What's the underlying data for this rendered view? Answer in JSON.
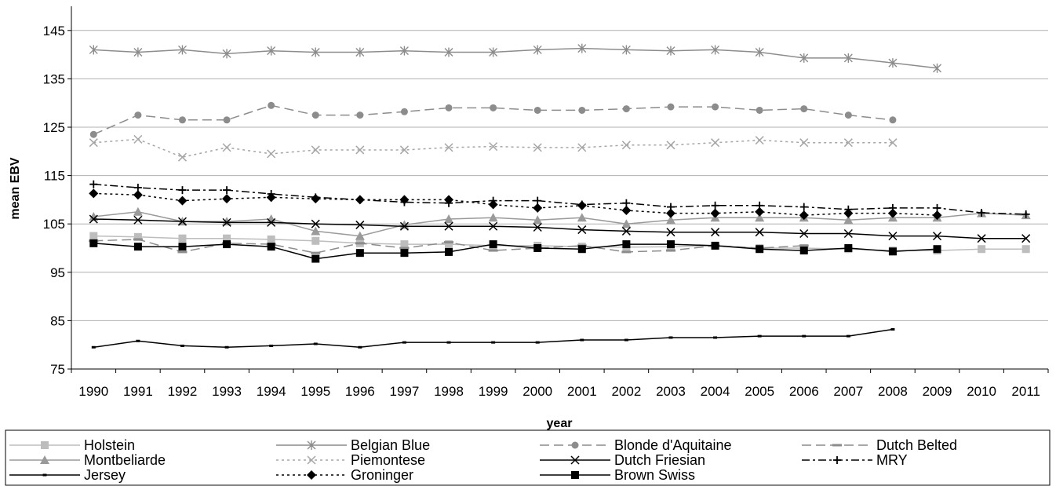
{
  "chart_data": {
    "type": "line",
    "title": "",
    "xlabel": "year",
    "ylabel": "mean EBV",
    "ylim": [
      75,
      150
    ],
    "yticks": [
      75,
      85,
      95,
      105,
      115,
      125,
      135,
      145
    ],
    "grid": "horizontal",
    "legend_position": "bottom",
    "x": [
      1990,
      1991,
      1992,
      1993,
      1994,
      1995,
      1996,
      1997,
      1998,
      1999,
      2000,
      2001,
      2002,
      2003,
      2004,
      2005,
      2006,
      2007,
      2008,
      2009,
      2010,
      2011
    ],
    "series": [
      {
        "name": "Holstein",
        "color": "#bdbdbd",
        "dash": "solid",
        "marker": "square",
        "values": [
          102.5,
          102.3,
          102.0,
          102.0,
          101.8,
          101.5,
          101.0,
          100.8,
          100.8,
          100.5,
          100.5,
          100.3,
          100.2,
          100.3,
          100.5,
          100.0,
          100.0,
          99.8,
          99.5,
          99.5,
          99.8,
          99.8
        ]
      },
      {
        "name": "Belgian Blue",
        "color": "#8c8c8c",
        "dash": "solid",
        "marker": "asterisk",
        "values": [
          141,
          140.5,
          141,
          140.2,
          140.8,
          140.5,
          140.5,
          140.8,
          140.5,
          140.5,
          141,
          141.3,
          141,
          140.8,
          141,
          140.5,
          139.3,
          139.3,
          138.3,
          137.2,
          null,
          null
        ]
      },
      {
        "name": "Blonde d'Aquitaine",
        "color": "#8c8c8c",
        "dash": "longdash",
        "marker": "circle",
        "values": [
          123.5,
          127.5,
          126.5,
          126.5,
          129.5,
          127.5,
          127.5,
          128.2,
          129,
          129,
          128.5,
          128.5,
          128.8,
          129.2,
          129.2,
          128.5,
          128.8,
          127.5,
          126.5,
          null,
          null,
          null
        ]
      },
      {
        "name": "Dutch Belted",
        "color": "#8c8c8c",
        "dash": "longdash",
        "marker": "dash",
        "values": [
          101.5,
          101.8,
          99.2,
          101.0,
          100.8,
          99.0,
          101.0,
          100.0,
          101.2,
          99.5,
          100.0,
          100.5,
          99.2,
          99.5,
          100.5,
          100.0,
          100.5,
          null,
          null,
          null,
          null,
          null
        ]
      },
      {
        "name": "Montbeliarde",
        "color": "#9a9a9a",
        "dash": "solid",
        "marker": "triangle",
        "values": [
          106.5,
          107.5,
          105.5,
          105.5,
          106.0,
          103.5,
          102.5,
          104.8,
          106.0,
          106.3,
          105.8,
          106.3,
          105.0,
          105.8,
          106.3,
          106.3,
          106.3,
          105.8,
          106.3,
          106.3,
          107.2,
          106.8
        ]
      },
      {
        "name": "Piemontese",
        "color": "#a5a5a5",
        "dash": "dotted",
        "marker": "x",
        "values": [
          121.8,
          122.5,
          118.8,
          120.8,
          119.5,
          120.3,
          120.3,
          120.3,
          120.8,
          121.0,
          120.8,
          120.8,
          121.3,
          121.3,
          121.8,
          122.3,
          121.8,
          121.8,
          121.8,
          null,
          null,
          null
        ]
      },
      {
        "name": "Dutch Friesian",
        "color": "#000000",
        "dash": "solid",
        "marker": "x",
        "values": [
          106.0,
          105.8,
          105.5,
          105.3,
          105.3,
          105.0,
          104.8,
          104.5,
          104.5,
          104.5,
          104.3,
          103.8,
          103.5,
          103.3,
          103.3,
          103.3,
          103.0,
          103.0,
          102.5,
          102.5,
          102.0,
          102.0
        ]
      },
      {
        "name": "MRY",
        "color": "#000000",
        "dash": "dashdot",
        "marker": "plus",
        "values": [
          113.2,
          112.5,
          112.0,
          112.0,
          111.2,
          110.5,
          110.0,
          109.5,
          109.3,
          109.8,
          109.8,
          109.0,
          109.3,
          108.5,
          108.8,
          108.8,
          108.5,
          108.0,
          108.3,
          108.3,
          107.3,
          107.0
        ]
      },
      {
        "name": "Jersey",
        "color": "#000000",
        "dash": "solid",
        "marker": "small-dash",
        "values": [
          79.5,
          80.8,
          79.8,
          79.5,
          79.8,
          80.2,
          79.5,
          80.5,
          80.5,
          80.5,
          80.5,
          81.0,
          81.0,
          81.5,
          81.5,
          81.8,
          81.8,
          81.8,
          83.2,
          null,
          null,
          null
        ]
      },
      {
        "name": "Groninger",
        "color": "#000000",
        "dash": "dotted",
        "marker": "diamond",
        "values": [
          111.3,
          111.0,
          109.8,
          110.2,
          110.5,
          110.2,
          110.0,
          110.0,
          110.0,
          109.0,
          108.3,
          108.8,
          107.8,
          107.2,
          107.2,
          107.5,
          106.8,
          107.2,
          107.2,
          106.8,
          null,
          null
        ]
      },
      {
        "name": "Brown Swiss",
        "color": "#000000",
        "dash": "solid",
        "marker": "square",
        "values": [
          101.0,
          100.3,
          100.3,
          100.8,
          100.3,
          97.8,
          99.0,
          99.0,
          99.2,
          100.8,
          100.0,
          99.8,
          100.8,
          100.8,
          100.5,
          99.8,
          99.5,
          100.0,
          99.3,
          99.8,
          null,
          null
        ]
      }
    ]
  }
}
